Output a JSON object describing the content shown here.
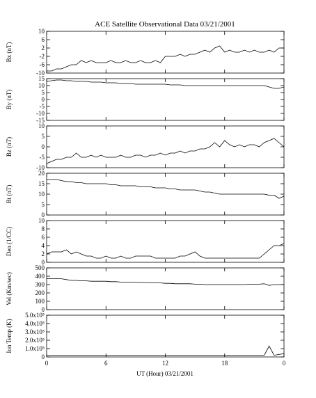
{
  "chart_data": [
    {
      "type": "line",
      "title": "ACE Satellite Observational Data   03/21/2001",
      "ylabel": "Bx (nT)",
      "ylim": [
        -10,
        10
      ],
      "yticks": [
        -10,
        -6,
        -2,
        2,
        6,
        10
      ],
      "values": [
        -9,
        -9,
        -8,
        -8,
        -7,
        -6,
        -6,
        -4,
        -5,
        -4,
        -5,
        -5,
        -5,
        -4,
        -5,
        -5,
        -4,
        -5,
        -5,
        -4,
        -5,
        -5,
        -4,
        -5,
        -2,
        -2,
        -2,
        -1,
        -2,
        -1,
        -1,
        0,
        1,
        0,
        2,
        3,
        0,
        1,
        0,
        0,
        1,
        0,
        1,
        0,
        0,
        1,
        0,
        2,
        2
      ],
      "color": "#000000"
    },
    {
      "type": "line",
      "ylabel": "By (nT)",
      "ylim": [
        -15,
        15
      ],
      "yticks": [
        -15,
        -10,
        -5,
        0,
        5,
        10,
        15
      ],
      "values": [
        13,
        13.5,
        14,
        14,
        13.5,
        13.5,
        13,
        13,
        13,
        12.5,
        12.5,
        12.5,
        12,
        12,
        12,
        11.5,
        11.5,
        11.5,
        11,
        11,
        11,
        11,
        11,
        11,
        11,
        10.5,
        10.5,
        10.5,
        10,
        10,
        10,
        10,
        10,
        10,
        10,
        10,
        10,
        10,
        10,
        10,
        10,
        10,
        10,
        10,
        10,
        9,
        8,
        8,
        9
      ],
      "color": "#000000"
    },
    {
      "type": "line",
      "ylabel": "Bz (nT)",
      "ylim": [
        -10,
        10
      ],
      "yticks": [
        -10,
        -5,
        0,
        5,
        10
      ],
      "values": [
        -8,
        -7,
        -6,
        -6,
        -5,
        -5,
        -3,
        -5,
        -5,
        -4,
        -5,
        -4,
        -5,
        -5,
        -5,
        -4,
        -5,
        -5,
        -4,
        -4,
        -5,
        -4,
        -4,
        -3,
        -4,
        -3,
        -3,
        -2,
        -3,
        -2,
        -2,
        -1,
        -1,
        0,
        2,
        0,
        3,
        1,
        0,
        1,
        0,
        1,
        1,
        0,
        2,
        3,
        4,
        2,
        0
      ],
      "color": "#000000"
    },
    {
      "type": "line",
      "ylabel": "Bt (nT)",
      "ylim": [
        0,
        20
      ],
      "yticks": [
        0,
        5,
        10,
        15,
        20
      ],
      "values": [
        17,
        17,
        17,
        16.5,
        16,
        16,
        15.5,
        15.5,
        15,
        15,
        15,
        15,
        15,
        14.5,
        14.5,
        14,
        14,
        14,
        14,
        13.5,
        13.5,
        13.5,
        13,
        13,
        13,
        12.5,
        12.5,
        12,
        12,
        12,
        12,
        11.5,
        11,
        11,
        10.5,
        10,
        10,
        10,
        10,
        10,
        10,
        10,
        10,
        10,
        10,
        9.5,
        9.5,
        8,
        9
      ],
      "color": "#000000"
    },
    {
      "type": "line",
      "ylabel": "Den (1/CC)",
      "ylim": [
        0,
        10
      ],
      "yticks": [
        0,
        2,
        4,
        6,
        8,
        10
      ],
      "values": [
        2,
        2.5,
        2.5,
        2.5,
        3,
        2,
        2.5,
        2,
        1.5,
        1.5,
        1,
        1,
        1.5,
        1,
        1,
        1.5,
        1,
        1,
        1.5,
        1.5,
        1.5,
        1.5,
        1,
        1,
        1,
        1,
        1,
        1.5,
        1.5,
        2,
        2.5,
        1.5,
        1,
        1,
        1,
        1,
        1,
        1,
        1,
        1,
        1,
        1,
        1,
        1,
        2,
        3,
        4,
        4,
        4.5
      ],
      "color": "#000000"
    },
    {
      "type": "line",
      "ylabel": "Vel (Km/sec)",
      "ylim": [
        0,
        500
      ],
      "yticks": [
        0,
        100,
        200,
        300,
        400,
        500
      ],
      "values": [
        370,
        370,
        370,
        370,
        360,
        350,
        350,
        345,
        345,
        340,
        340,
        340,
        340,
        335,
        335,
        330,
        330,
        330,
        330,
        325,
        325,
        320,
        320,
        320,
        315,
        315,
        310,
        310,
        310,
        310,
        305,
        305,
        300,
        300,
        300,
        300,
        300,
        300,
        300,
        300,
        300,
        305,
        305,
        305,
        310,
        290,
        300,
        300,
        300
      ],
      "color": "#000000"
    },
    {
      "type": "line",
      "ylabel": "Ion Temp (K)",
      "xlabel": "UT (Hour)  03/21/2001",
      "ylim": [
        0,
        500000
      ],
      "yticks": [
        0,
        {
          "value": 100000,
          "label": "1.0x10⁵"
        },
        {
          "value": 200000,
          "label": "2.0x10⁵"
        },
        {
          "value": 300000,
          "label": "3.0x10⁵"
        },
        {
          "value": 400000,
          "label": "4.0x10⁵"
        },
        {
          "value": 500000,
          "label": "5.0x10⁵"
        }
      ],
      "xlim": [
        0,
        24
      ],
      "xticks": [
        0,
        6,
        12,
        18,
        {
          "value": 24,
          "label": "0"
        }
      ],
      "x": [
        0,
        0.5,
        1,
        1.5,
        2,
        2.5,
        3,
        3.5,
        4,
        4.5,
        5,
        5.5,
        6,
        6.5,
        7,
        7.5,
        8,
        8.5,
        9,
        9.5,
        10,
        10.5,
        11,
        11.5,
        12,
        12.5,
        13,
        13.5,
        14,
        14.5,
        15,
        15.5,
        16,
        16.5,
        17,
        17.5,
        18,
        18.5,
        19,
        19.5,
        20,
        20.5,
        21,
        21.5,
        22,
        22.5,
        23,
        23.5,
        24
      ],
      "values": [
        20000,
        20000,
        20000,
        20000,
        20000,
        20000,
        20000,
        20000,
        20000,
        20000,
        20000,
        20000,
        20000,
        20000,
        20000,
        20000,
        20000,
        20000,
        20000,
        20000,
        20000,
        20000,
        20000,
        20000,
        20000,
        20000,
        20000,
        20000,
        20000,
        20000,
        20000,
        20000,
        20000,
        20000,
        20000,
        20000,
        20000,
        20000,
        20000,
        20000,
        20000,
        20000,
        20000,
        20000,
        20000,
        130000,
        20000,
        30000,
        40000
      ],
      "color": "#000000"
    }
  ]
}
